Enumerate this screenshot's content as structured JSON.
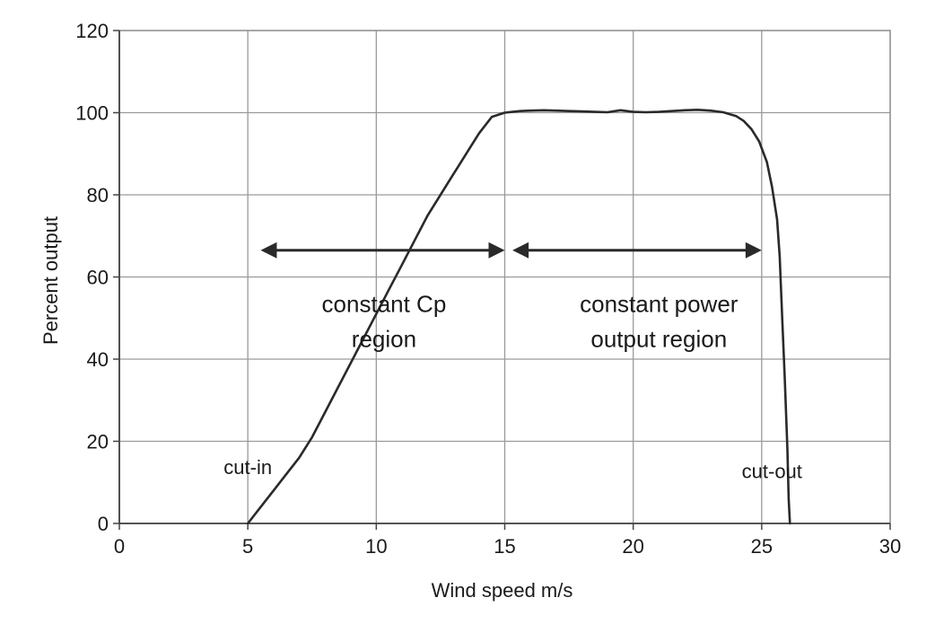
{
  "chart_data": {
    "type": "line",
    "title": "",
    "xlabel": "Wind speed m/s",
    "ylabel": "Percent output",
    "xlim": [
      0,
      30
    ],
    "ylim": [
      0,
      120
    ],
    "xticks": [
      0,
      5,
      10,
      15,
      20,
      25,
      30
    ],
    "yticks": [
      0,
      20,
      40,
      60,
      80,
      100,
      120
    ],
    "grid": true,
    "series": [
      {
        "x": [
          5.0,
          5.5,
          6.0,
          6.5,
          7.0,
          7.5,
          8.0,
          8.5,
          9.0,
          9.5,
          10.0,
          10.5,
          11.0,
          11.5,
          12.0,
          12.5,
          13.0,
          13.5,
          14.0,
          14.5,
          15.0,
          15.3,
          15.6,
          16.0,
          16.5,
          17.0,
          17.5,
          18.0,
          18.5,
          19.0,
          19.5,
          20.0,
          20.5,
          21.0,
          21.5,
          22.0,
          22.5,
          23.0,
          23.5,
          24.0,
          24.3,
          24.6,
          24.9,
          25.2,
          25.4,
          25.6,
          25.7,
          25.8,
          25.9,
          26.0,
          26.05,
          26.1
        ],
        "y": [
          0,
          4,
          8,
          12,
          16,
          21,
          27,
          33,
          39,
          45,
          51,
          57,
          63,
          69,
          75,
          80,
          85,
          90,
          95,
          99,
          100,
          100.2,
          100.4,
          100.5,
          100.6,
          100.5,
          100.4,
          100.3,
          100.2,
          100.1,
          100.6,
          100.2,
          100.1,
          100.2,
          100.4,
          100.6,
          100.7,
          100.5,
          100.1,
          99.2,
          98.0,
          96.0,
          93.0,
          88.0,
          82.0,
          74.0,
          65.0,
          50.0,
          35.0,
          18.0,
          6.0,
          0
        ]
      }
    ],
    "annotations": [
      {
        "text": "cut-in",
        "x": 5.0,
        "y": 12
      },
      {
        "text": "cut-out",
        "x": 25.4,
        "y": 11
      },
      {
        "text": "constant Cp",
        "x": 10.3,
        "y": 51.5
      },
      {
        "text": "region",
        "x": 10.3,
        "y": 43
      },
      {
        "text": "constant power",
        "x": 21.0,
        "y": 51.5
      },
      {
        "text": "output region",
        "x": 21.0,
        "y": 43
      }
    ],
    "arrows": [
      {
        "x_start": 5.5,
        "x_end": 15.0,
        "y": 66.5
      },
      {
        "x_start": 15.3,
        "x_end": 25.0,
        "y": 66.5
      }
    ]
  }
}
